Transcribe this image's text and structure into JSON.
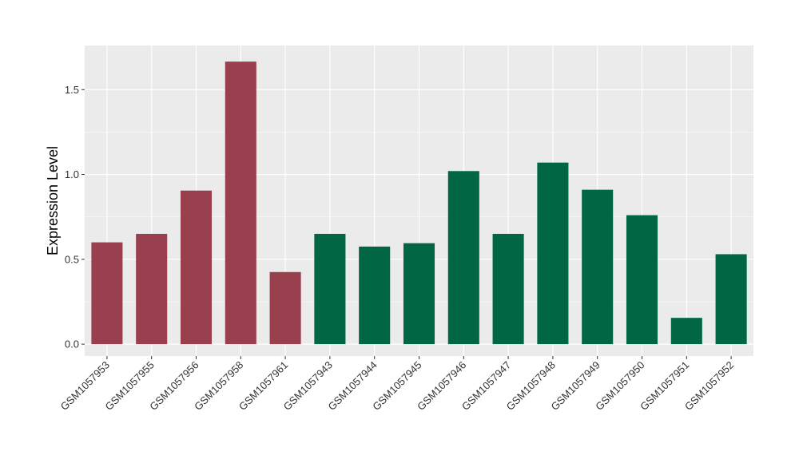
{
  "chart_data": {
    "type": "bar",
    "xlabel": "",
    "ylabel": "Expression Level",
    "ylim": [
      -0.07,
      1.76
    ],
    "yticks": [
      0.0,
      0.5,
      1.0,
      1.5
    ],
    "ytick_labels": [
      "0.0",
      "0.5",
      "1.0",
      "1.5"
    ],
    "grid": true,
    "categories": [
      "GSM1057953",
      "GSM1057955",
      "GSM1057956",
      "GSM1057958",
      "GSM1057961",
      "GSM1057943",
      "GSM1057944",
      "GSM1057945",
      "GSM1057946",
      "GSM1057947",
      "GSM1057948",
      "GSM1057949",
      "GSM1057950",
      "GSM1057951",
      "GSM1057952"
    ],
    "values": [
      0.6,
      0.65,
      0.905,
      1.665,
      0.425,
      0.65,
      0.575,
      0.595,
      1.02,
      0.65,
      1.07,
      0.91,
      0.76,
      0.155,
      0.53
    ],
    "bar_colors": [
      "#99404F",
      "#99404F",
      "#99404F",
      "#99404F",
      "#99404F",
      "#006644",
      "#006644",
      "#006644",
      "#006644",
      "#006644",
      "#006644",
      "#006644",
      "#006644",
      "#006644",
      "#006644"
    ],
    "panel_color": "#EBEBEB",
    "grid_color": "#FFFFFF"
  }
}
